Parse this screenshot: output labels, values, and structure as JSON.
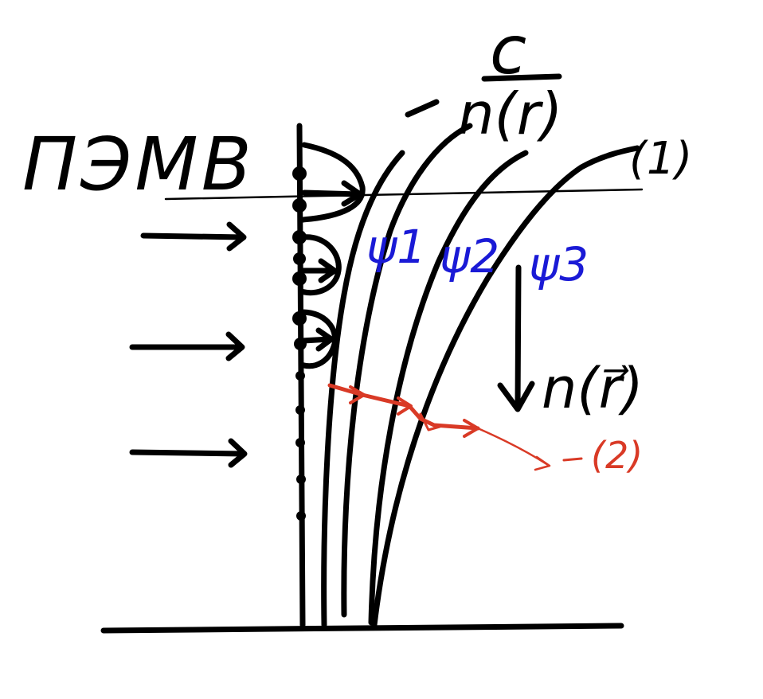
{
  "labels": {
    "title": "ПЭМВ",
    "speed_numerator": "c",
    "speed_denominator": "n(r)",
    "curve_marker": "(1)",
    "ray_marker": "(2)",
    "psi_1": "ψ1",
    "psi_2": "ψ2",
    "psi_3": "ψ3",
    "gradient_label": "n(r⃗)"
  },
  "colors": {
    "ink": "#000000",
    "psi_labels": "#1a1ad6",
    "ray": "#d93a26"
  }
}
